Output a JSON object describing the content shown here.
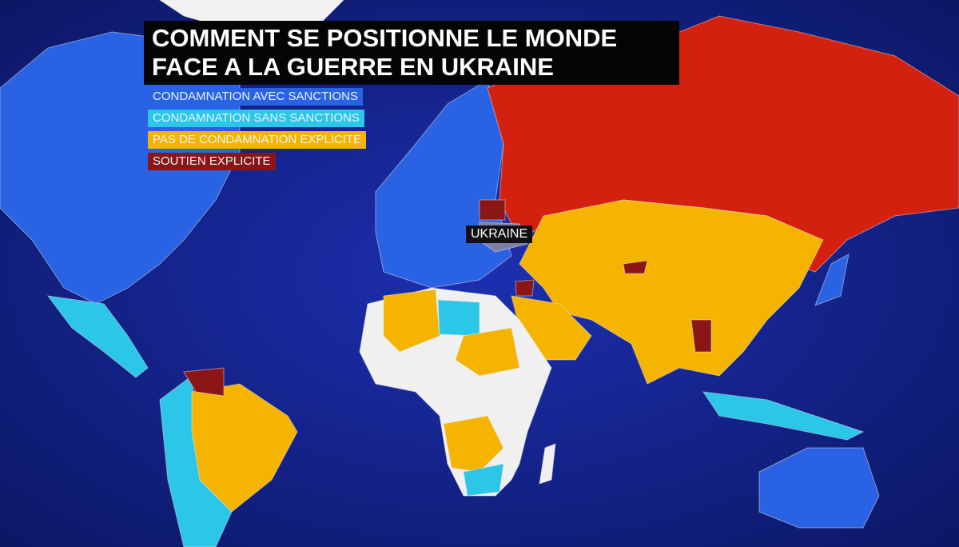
{
  "title": {
    "lines": [
      "COMMENT SE POSITIONNE LE MONDE",
      "FACE A LA GUERRE EN UKRAINE"
    ]
  },
  "legend": [
    {
      "label": "CONDAMNATION AVEC SANCTIONS",
      "color": "#2a62e4"
    },
    {
      "label": "CONDAMNATION SANS SANCTIONS",
      "color": "#2cc6e8"
    },
    {
      "label": "PAS DE CONDAMNATION EXPLICITE",
      "color": "#f5b400"
    },
    {
      "label": "SOUTIEN EXPLICITE",
      "color": "#8a1616"
    }
  ],
  "labels": [
    {
      "text": "UKRAINE"
    }
  ]
}
